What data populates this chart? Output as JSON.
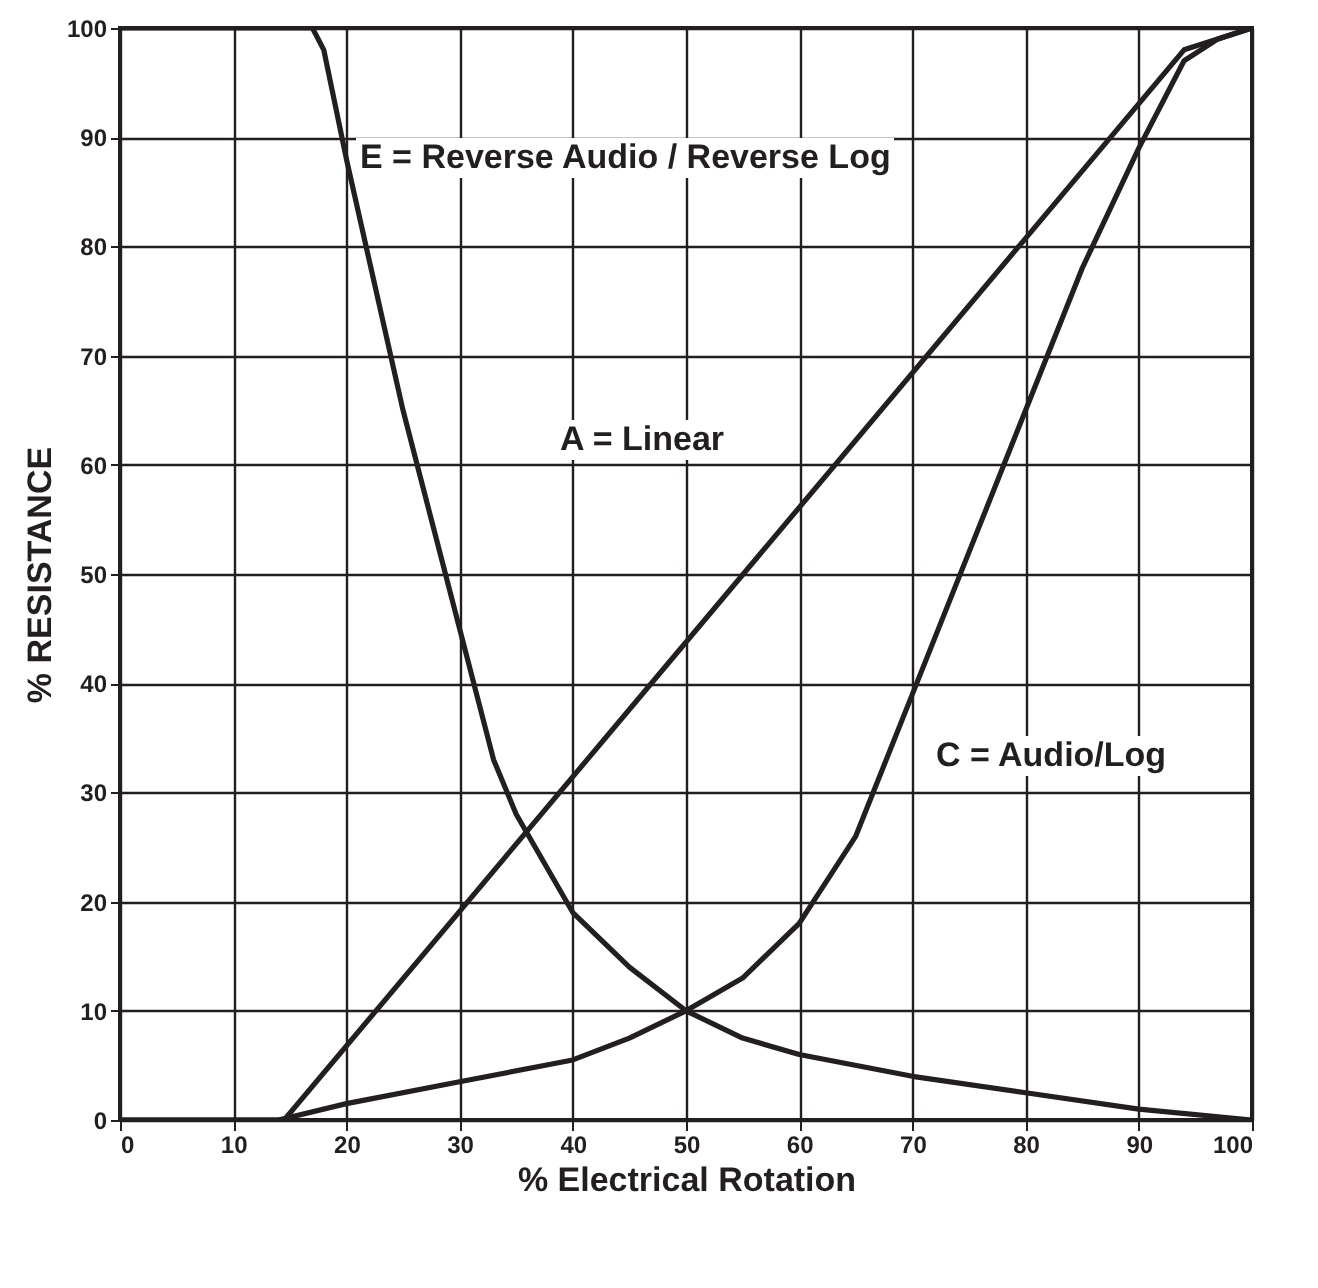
{
  "chart_data": {
    "type": "line",
    "xlabel": "% Electrical Rotation",
    "ylabel": "% RESISTANCE",
    "xlim": [
      0,
      100
    ],
    "ylim": [
      0,
      100
    ],
    "xticks": [
      0,
      10,
      20,
      30,
      40,
      50,
      60,
      70,
      80,
      90,
      100
    ],
    "yticks": [
      0,
      10,
      20,
      30,
      40,
      50,
      60,
      70,
      80,
      90,
      100
    ],
    "grid": true,
    "legend": false,
    "marker": "none",
    "line_style": "solid",
    "series": [
      {
        "color": "#231f20",
        "x": [
          0,
          14.5,
          94,
          100
        ],
        "values": [
          0,
          0,
          98,
          100
        ]
      },
      {
        "color": "#231f20",
        "x": [
          0,
          14,
          20,
          30,
          40,
          45,
          50,
          55,
          60,
          65,
          70,
          75,
          80,
          85,
          90,
          94,
          97,
          100
        ],
        "values": [
          0,
          0,
          1.5,
          3.5,
          5.5,
          7.5,
          10,
          13,
          18,
          26,
          39,
          52,
          65,
          78,
          89,
          97,
          99,
          100
        ]
      },
      {
        "color": "#231f20",
        "x": [
          0,
          17,
          18,
          20,
          25,
          30,
          33,
          35,
          40,
          45,
          50,
          55,
          60,
          70,
          80,
          90,
          100
        ],
        "values": [
          100,
          100,
          98,
          88,
          65,
          45,
          33,
          28,
          19,
          14,
          10,
          7.5,
          6,
          4,
          2.5,
          1,
          0
        ]
      }
    ],
    "annotations": [
      "E = Reverse Audio / Reverse Log",
      "A = Linear",
      "C = Audio/Log"
    ]
  }
}
